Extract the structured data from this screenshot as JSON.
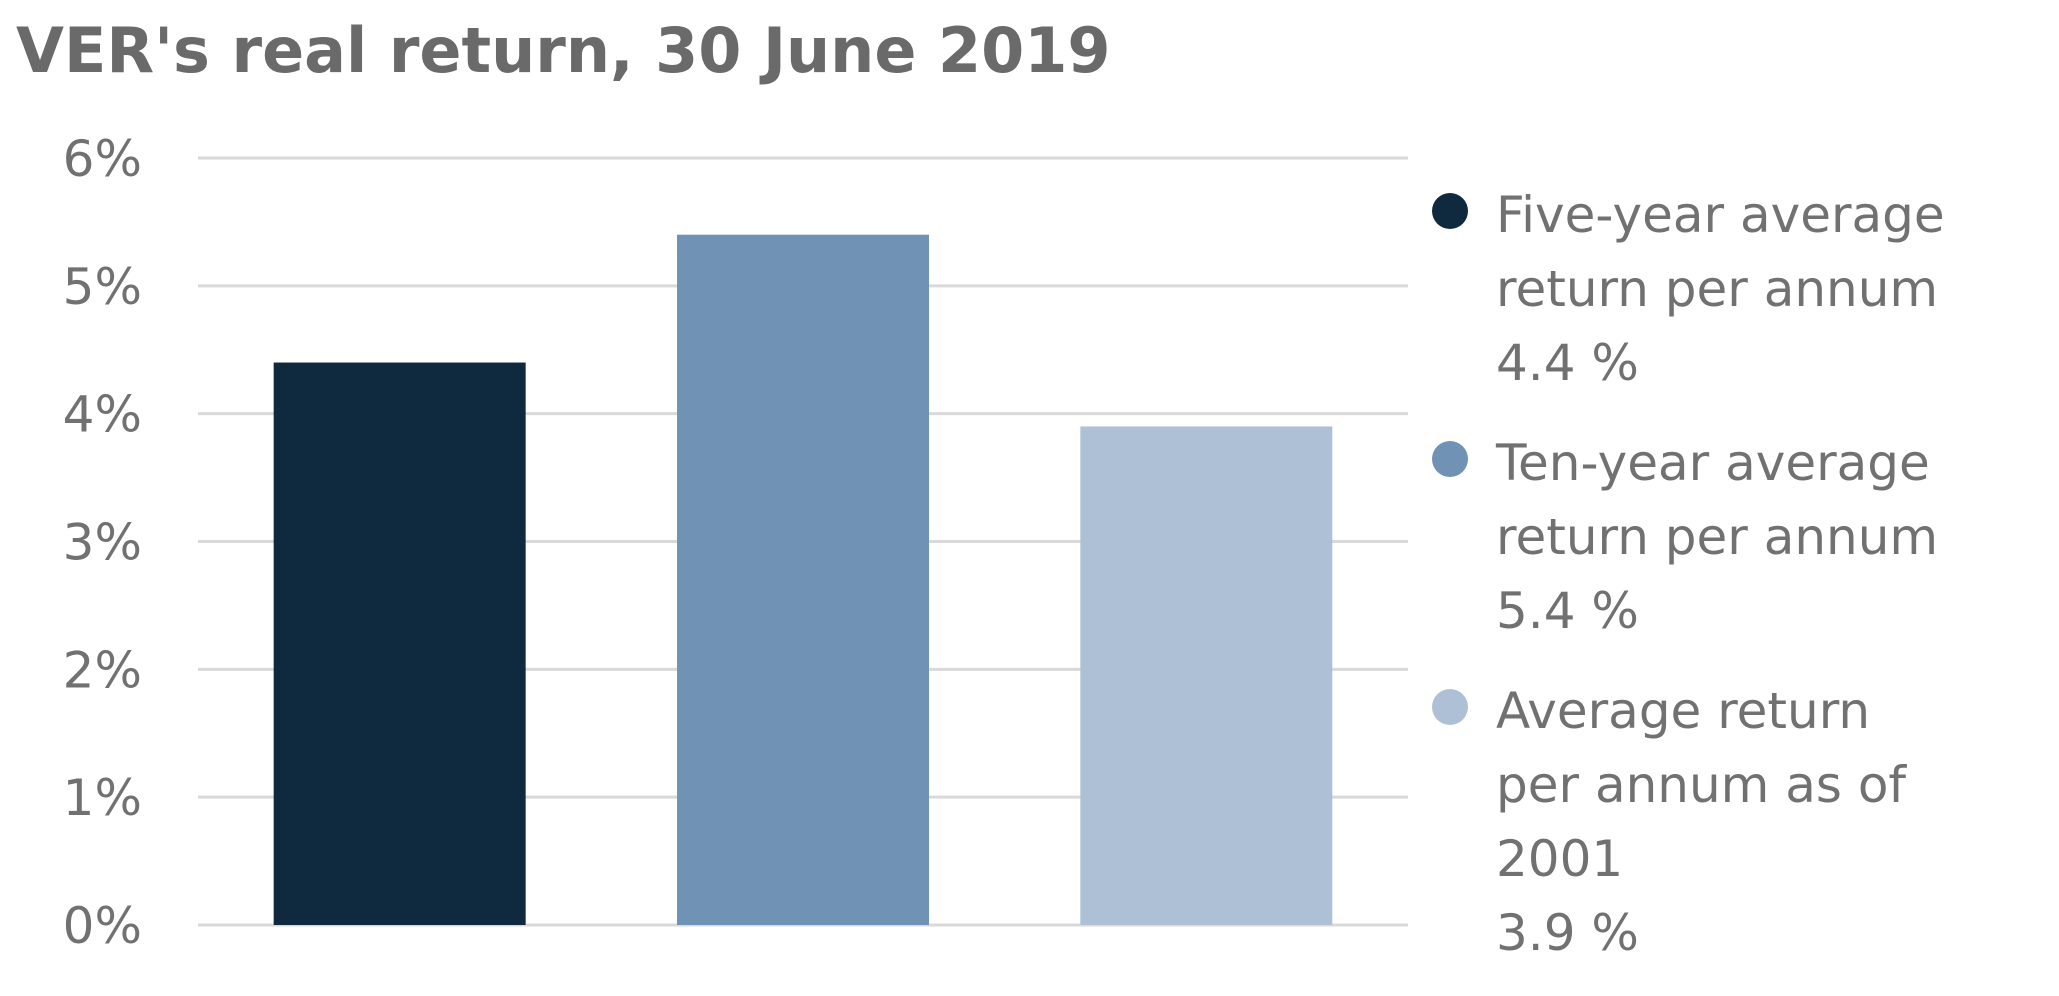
{
  "chart_data": {
    "type": "bar",
    "title": "VER's real return, 30 June 2019",
    "categories": [
      "Five-year average\nreturn per annum",
      "Ten-year average\nreturn per annum",
      "Average return\nper annum as of 2001"
    ],
    "values": [
      4.4,
      5.4,
      3.9
    ],
    "value_labels": [
      "4.4 %",
      "5.4 %",
      "3.9 %"
    ],
    "colors": [
      "#0f2a3f",
      "#7092b5",
      "#adc0d6"
    ],
    "ylim": [
      0,
      6
    ],
    "yticks": [
      {
        "value": 0,
        "label": "0%"
      },
      {
        "value": 1,
        "label": "1%"
      },
      {
        "value": 2,
        "label": "2%"
      },
      {
        "value": 3,
        "label": "3%"
      },
      {
        "value": 4,
        "label": "4%"
      },
      {
        "value": 5,
        "label": "5%"
      },
      {
        "value": 6,
        "label": "6%"
      }
    ],
    "grid": true,
    "grid_color": "#d9d9d9",
    "legend_position": "right"
  }
}
